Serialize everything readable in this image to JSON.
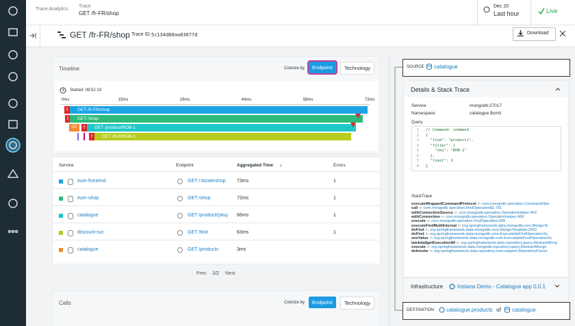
{
  "header": {
    "breadcrumb_root": "Trace Analytics",
    "breadcrumb_section": "Trace",
    "breadcrumb_current": "GET /fr-FR/shop",
    "date": "Dec 20",
    "range": "Last hour",
    "live": "Live"
  },
  "trace": {
    "title": "GET /fr-FR/shop",
    "trace_id_label": "Trace ID:",
    "trace_id": "5c134d80aa83677d",
    "download": "Download"
  },
  "timeline": {
    "title": "Timeline",
    "colorize_label": "Colorize by",
    "options": [
      "Endpoint",
      "Technology"
    ],
    "started": "Started: 08:51:19",
    "axis_ticks": [
      "0ms",
      "15ms",
      "29ms",
      "44ms",
      "58ms",
      "73ms"
    ],
    "error_mark": "!",
    "short_label": "GE",
    "spans": [
      "GET /fr-FR/shop",
      "GET /shop",
      "GET /product/ROB-1",
      "GET /find/ROB-1"
    ]
  },
  "table": {
    "headers": [
      "Service",
      "Endpoint",
      "Aggregated Time",
      "Errors"
    ],
    "rows": [
      {
        "service": "eum-frontend",
        "endpoint": "GET /:locale/shop",
        "time": "73ms",
        "errors": "1"
      },
      {
        "service": "eum-shop",
        "endpoint": "GET /shop",
        "time": "72ms",
        "errors": "1"
      },
      {
        "service": "catalogue",
        "endpoint": "GET /product/{sku}",
        "time": "66ms",
        "errors": "1"
      },
      {
        "service": "discount-svc",
        "endpoint": "GET /find",
        "time": "63ms",
        "errors": "1"
      },
      {
        "service": "catalogue",
        "endpoint": "GET /products",
        "time": "3ms"
      }
    ]
  },
  "pagination": {
    "prev": "Prev",
    "page": "1/2",
    "next": "Next"
  },
  "calls": {
    "title": "Calls",
    "colorize_label": "Colorize by",
    "options": [
      "Endpoint",
      "Technology"
    ]
  },
  "details": {
    "source_label": "SOURCE",
    "source": "catalogue",
    "title": "Details & Stack Trace",
    "fields": [
      {
        "label": "Service",
        "value": "mongodb:27017"
      },
      {
        "label": "Namespace",
        "value": "catalogue.$cmd"
      }
    ],
    "query_label": "Query",
    "query_lines": [
      {
        "n": 1,
        "text": "// Command: command"
      },
      {
        "n": 2,
        "text": "{"
      },
      {
        "n": 3,
        "text": "  \"find\": \"products\","
      },
      {
        "n": 4,
        "text": "  \"filter\": {"
      },
      {
        "n": 5,
        "text": "    \"sku\": \"ROB-1\""
      },
      {
        "n": 6,
        "text": "  },"
      },
      {
        "n": 7,
        "text": "  \"limit\": 2"
      },
      {
        "n": 8,
        "text": "}"
      }
    ],
    "stacktrace_label": "StackTrace",
    "joiner": "in",
    "frames": [
      {
        "method": "executeWrappedCommandProtocol",
        "location": "com.mongodb.operation.CommandOpe"
      },
      {
        "method": "call",
        "location": "com.mongodb.operation.FindOperation$1:701"
      },
      {
        "method": "withConnectionSource",
        "location": "com.mongodb.operation.OperationHelper:462"
      },
      {
        "method": "withConnection",
        "location": "com.mongodb.operation.OperationHelper:406"
      },
      {
        "method": "execute",
        "location": "com.mongodb.operation.FindOperation:695"
      },
      {
        "method": "executeFindMultiInternal",
        "location": "org.springframework.data.mongodb.core.MongoTe"
      },
      {
        "method": "doFind",
        "location": "org.springframework.data.mongodb.core.MongoTemplate:2403"
      },
      {
        "method": "doFind",
        "location": "org.springframework.data.mongodb.core.ExecutableFindOperationSu"
      },
      {
        "method": "oneValue",
        "location": "org.springframework.data.mongodb.core.ExecutableFindOperationSu"
      },
      {
        "method": "lambda$getExecution$4",
        "location": "org.springframework.data.repository.query.AbstractMong"
      },
      {
        "method": "execute",
        "location": "org.springframework.data.mongodb.repository.query.AbstractMongo"
      },
      {
        "method": "doInvoke",
        "location": "org.springframework.data.repository.core.support.RepositoryFactor"
      }
    ],
    "infrastructure_label": "Infrastructure",
    "infrastructure": "Instana Demo - Catalogue app 0.0.1",
    "destination_label": "DESTINATION",
    "destination": "catalogue.products",
    "destination_of": "of",
    "destination_service": "catalogue"
  }
}
